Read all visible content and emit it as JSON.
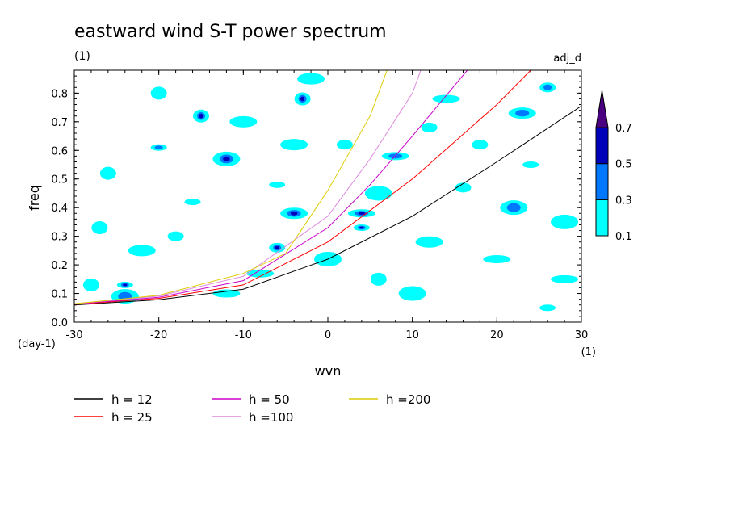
{
  "header": {
    "title": "eastward wind S-T power spectrum",
    "unit": "(1)",
    "tag": "adj_d"
  },
  "chart_data": {
    "type": "heatmap",
    "title": "eastward wind S-T power spectrum",
    "xlabel": "wvn",
    "ylabel": "freq",
    "x_unit": "(1)",
    "y_unit": "(day-1)",
    "xlim": [
      -30,
      30
    ],
    "ylim": [
      0,
      0.88
    ],
    "xticks": [
      -30,
      -20,
      -10,
      0,
      10,
      20,
      30
    ],
    "xtick_labels": [
      "-30",
      "-20",
      "-10",
      "0",
      "10",
      "20",
      "30"
    ],
    "yticks": [
      0,
      0.1,
      0.2,
      0.3,
      0.4,
      0.5,
      0.6,
      0.7,
      0.8
    ],
    "ytick_labels": [
      "0.0",
      "0.1",
      "0.2",
      "0.3",
      "0.4",
      "0.5",
      "0.6",
      "0.7",
      "0.8"
    ],
    "colorbar": {
      "levels": [
        0.1,
        0.3,
        0.5,
        0.7
      ],
      "level_labels": [
        "0.1",
        "0.3",
        "0.5",
        "0.7"
      ],
      "colors": [
        "#00ffff",
        "#0077ff",
        "#0000bb",
        "#4b0082"
      ]
    },
    "contour_patches": [
      {
        "x": -24,
        "y": 0.13,
        "level": 2
      },
      {
        "x": -24,
        "y": 0.09,
        "level": 1
      },
      {
        "x": -15,
        "y": 0.72,
        "level": 2
      },
      {
        "x": -4,
        "y": 0.38,
        "level": 2
      },
      {
        "x": -6,
        "y": 0.26,
        "level": 2
      },
      {
        "x": 4,
        "y": 0.38,
        "level": 2
      },
      {
        "x": 4,
        "y": 0.33,
        "level": 2
      },
      {
        "x": -12,
        "y": 0.57,
        "level": 2
      },
      {
        "x": -3,
        "y": 0.78,
        "level": 2
      },
      {
        "x": 23,
        "y": 0.73,
        "level": 1
      },
      {
        "x": 26,
        "y": 0.82,
        "level": 1
      },
      {
        "x": 8,
        "y": 0.58,
        "level": 1
      },
      {
        "x": -20,
        "y": 0.61,
        "level": 1
      },
      {
        "x": 22,
        "y": 0.4,
        "level": 1
      },
      {
        "x": -27,
        "y": 0.33,
        "level": 0
      },
      {
        "x": -22,
        "y": 0.25,
        "level": 0
      },
      {
        "x": -18,
        "y": 0.3,
        "level": 0
      },
      {
        "x": -12,
        "y": 0.1,
        "level": 0
      },
      {
        "x": -6,
        "y": 0.48,
        "level": 0
      },
      {
        "x": 0,
        "y": 0.22,
        "level": 0
      },
      {
        "x": 6,
        "y": 0.15,
        "level": 0
      },
      {
        "x": 12,
        "y": 0.28,
        "level": 0
      },
      {
        "x": 16,
        "y": 0.47,
        "level": 0
      },
      {
        "x": 20,
        "y": 0.22,
        "level": 0
      },
      {
        "x": 26,
        "y": 0.05,
        "level": 0
      },
      {
        "x": 28,
        "y": 0.35,
        "level": 0
      },
      {
        "x": -26,
        "y": 0.52,
        "level": 0
      },
      {
        "x": -10,
        "y": 0.7,
        "level": 0
      },
      {
        "x": 2,
        "y": 0.62,
        "level": 0
      },
      {
        "x": 14,
        "y": 0.78,
        "level": 0
      },
      {
        "x": -16,
        "y": 0.42,
        "level": 0
      },
      {
        "x": 10,
        "y": 0.1,
        "level": 0
      },
      {
        "x": -28,
        "y": 0.13,
        "level": 0
      },
      {
        "x": -2,
        "y": 0.85,
        "level": 0
      },
      {
        "x": 18,
        "y": 0.62,
        "level": 0
      },
      {
        "x": -8,
        "y": 0.17,
        "level": 0
      },
      {
        "x": 24,
        "y": 0.55,
        "level": 0
      },
      {
        "x": 6,
        "y": 0.45,
        "level": 0
      },
      {
        "x": -20,
        "y": 0.8,
        "level": 0
      },
      {
        "x": -4,
        "y": 0.62,
        "level": 0
      },
      {
        "x": 12,
        "y": 0.68,
        "level": 0
      },
      {
        "x": 28,
        "y": 0.15,
        "level": 0
      }
    ],
    "series": [
      {
        "name": "h = 12",
        "color": "#000000",
        "points": [
          [
            -30,
            0.06
          ],
          [
            -20,
            0.078
          ],
          [
            -10,
            0.115
          ],
          [
            0,
            0.22
          ],
          [
            10,
            0.37
          ],
          [
            20,
            0.56
          ],
          [
            30,
            0.755
          ]
        ]
      },
      {
        "name": "h = 25",
        "color": "#ff0000",
        "points": [
          [
            -30,
            0.062
          ],
          [
            -20,
            0.083
          ],
          [
            -10,
            0.13
          ],
          [
            0,
            0.28
          ],
          [
            10,
            0.5
          ],
          [
            20,
            0.76
          ],
          [
            24,
            0.88
          ]
        ]
      },
      {
        "name": "h = 50",
        "color": "#cc00cc",
        "points": [
          [
            -30,
            0.063
          ],
          [
            -20,
            0.087
          ],
          [
            -10,
            0.145
          ],
          [
            0,
            0.33
          ],
          [
            5,
            0.48
          ],
          [
            10,
            0.65
          ],
          [
            16.5,
            0.88
          ]
        ]
      },
      {
        "name": "h =100",
        "color": "#dd88dd",
        "points": [
          [
            -30,
            0.064
          ],
          [
            -20,
            0.091
          ],
          [
            -10,
            0.16
          ],
          [
            0,
            0.37
          ],
          [
            5,
            0.57
          ],
          [
            10,
            0.8
          ],
          [
            11,
            0.88
          ]
        ]
      },
      {
        "name": "h =200",
        "color": "#ddcc00",
        "points": [
          [
            -30,
            0.064
          ],
          [
            -20,
            0.094
          ],
          [
            -10,
            0.17
          ],
          [
            -5,
            0.24
          ],
          [
            0,
            0.46
          ],
          [
            5,
            0.72
          ],
          [
            7,
            0.88
          ]
        ]
      }
    ],
    "legend": [
      {
        "label": "h = 12",
        "color": "#000000"
      },
      {
        "label": "h = 25",
        "color": "#ff0000"
      },
      {
        "label": "h = 50",
        "color": "#cc00cc"
      },
      {
        "label": "h =100",
        "color": "#dd88dd"
      },
      {
        "label": "h =200",
        "color": "#ddcc00"
      }
    ],
    "legend_placement": "bottom"
  }
}
